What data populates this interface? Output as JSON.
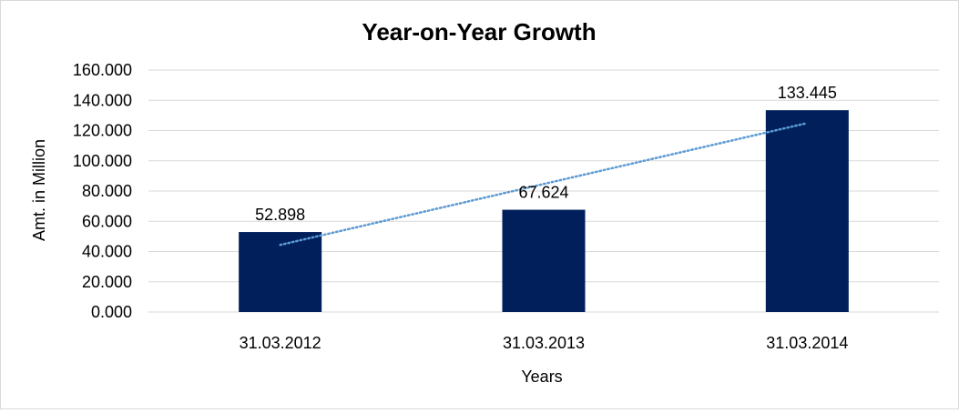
{
  "chart_data": {
    "type": "bar",
    "title": "Year-on-Year Growth",
    "xlabel": "Years",
    "ylabel": "Amt. in Million",
    "categories": [
      "31.03.2012",
      "31.03.2013",
      "31.03.2014"
    ],
    "values": [
      52.898,
      67.624,
      133.445
    ],
    "value_labels": [
      "52.898",
      "67.624",
      "133.445"
    ],
    "ylim": [
      0,
      160
    ],
    "yticks": [
      0,
      20,
      40,
      60,
      80,
      100,
      120,
      140,
      160
    ],
    "ytick_labels": [
      "0.000",
      "20.000",
      "40.000",
      "60.000",
      "80.000",
      "100.000",
      "120.000",
      "140.000",
      "160.000"
    ],
    "grid": true,
    "legend": "none",
    "trendline": {
      "type": "linear",
      "style": "dotted"
    },
    "colors": {
      "bar": "#001f5b",
      "trendline": "#5b9bd5",
      "grid": "#d9d9d9"
    }
  }
}
